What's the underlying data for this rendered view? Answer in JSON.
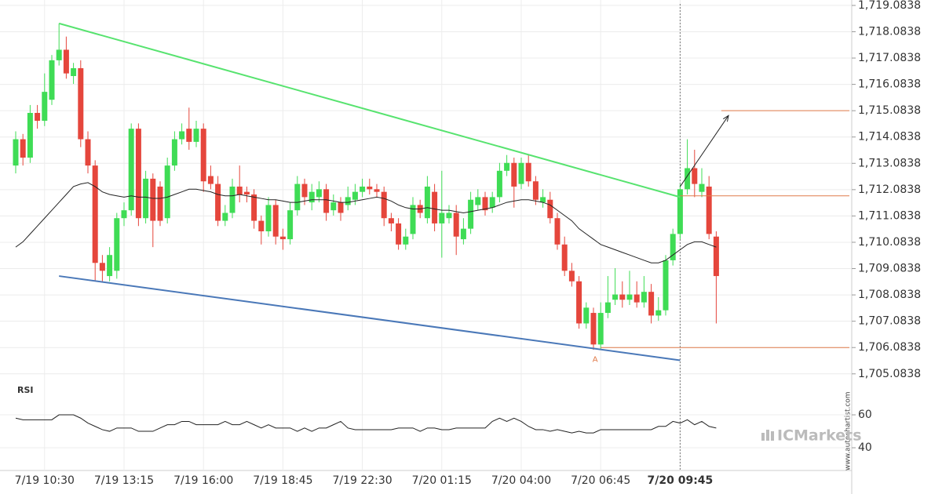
{
  "chart_data": {
    "type": "candlestick",
    "categories": [
      null,
      null,
      null,
      null,
      "7/19 10:30",
      null,
      null,
      null,
      null,
      null,
      null,
      null,
      null,
      null,
      null,
      "7/19 13:15",
      null,
      null,
      null,
      null,
      null,
      null,
      null,
      null,
      null,
      null,
      "7/19 16:00",
      null,
      null,
      null,
      null,
      null,
      null,
      null,
      null,
      null,
      null,
      "7/19 18:45",
      null,
      null,
      null,
      null,
      null,
      null,
      null,
      null,
      null,
      null,
      "7/19 22:30",
      null,
      null,
      null,
      null,
      null,
      null,
      null,
      null,
      null,
      null,
      "7/20 01:15",
      null,
      null,
      null,
      null,
      null,
      null,
      null,
      null,
      null,
      null,
      "7/20 04:00",
      null,
      null,
      null,
      null,
      null,
      null,
      null,
      null,
      null,
      null,
      "7/20 06:45",
      null,
      null,
      null,
      null,
      null,
      null,
      null,
      null,
      null,
      null,
      "7/20 09:45",
      null,
      null,
      null,
      null,
      null
    ],
    "ohlc": [
      [
        1713.0,
        1714.3,
        1712.7,
        1714.0
      ],
      [
        1714.0,
        1714.2,
        1713.0,
        1713.3
      ],
      [
        1713.3,
        1715.3,
        1713.1,
        1715.0
      ],
      [
        1715.0,
        1715.3,
        1714.4,
        1714.7
      ],
      [
        1714.7,
        1716.5,
        1714.5,
        1715.8
      ],
      [
        1715.5,
        1717.2,
        1715.3,
        1717.0
      ],
      [
        1717.0,
        1718.4,
        1716.8,
        1717.4
      ],
      [
        1717.4,
        1717.9,
        1716.3,
        1716.5
      ],
      [
        1716.4,
        1716.9,
        1716.1,
        1716.7
      ],
      [
        1716.7,
        1717.0,
        1713.7,
        1714.0
      ],
      [
        1714.0,
        1714.3,
        1712.7,
        1713.0
      ],
      [
        1713.0,
        1713.2,
        1708.6,
        1709.3
      ],
      [
        1709.3,
        1709.6,
        1708.6,
        1709.0
      ],
      [
        1708.8,
        1709.9,
        1708.6,
        1709.6
      ],
      [
        1709.0,
        1711.2,
        1708.7,
        1711.0
      ],
      [
        1711.0,
        1711.6,
        1710.7,
        1711.3
      ],
      [
        1711.3,
        1714.6,
        1711.1,
        1714.4
      ],
      [
        1714.4,
        1714.6,
        1710.7,
        1711.0
      ],
      [
        1711.0,
        1712.8,
        1710.8,
        1712.5
      ],
      [
        1712.5,
        1712.7,
        1709.9,
        1710.9
      ],
      [
        1712.2,
        1712.4,
        1710.7,
        1710.9
      ],
      [
        1711.0,
        1713.3,
        1710.8,
        1713.0
      ],
      [
        1713.0,
        1714.3,
        1712.8,
        1714.0
      ],
      [
        1714.0,
        1714.6,
        1713.8,
        1714.3
      ],
      [
        1714.4,
        1715.2,
        1713.6,
        1713.9
      ],
      [
        1713.9,
        1714.7,
        1713.7,
        1714.4
      ],
      [
        1714.4,
        1714.6,
        1712.0,
        1712.4
      ],
      [
        1712.6,
        1713.0,
        1712.1,
        1712.3
      ],
      [
        1712.3,
        1712.6,
        1710.7,
        1710.9
      ],
      [
        1710.9,
        1711.5,
        1710.7,
        1711.2
      ],
      [
        1711.2,
        1712.5,
        1711.0,
        1712.2
      ],
      [
        1712.2,
        1713.0,
        1711.6,
        1711.9
      ],
      [
        1712.0,
        1712.2,
        1711.6,
        1711.9
      ],
      [
        1711.9,
        1712.1,
        1710.6,
        1710.9
      ],
      [
        1710.9,
        1711.1,
        1710.0,
        1710.5
      ],
      [
        1710.5,
        1711.8,
        1710.3,
        1711.5
      ],
      [
        1711.5,
        1711.7,
        1710.0,
        1710.3
      ],
      [
        1710.3,
        1710.6,
        1709.8,
        1710.2
      ],
      [
        1710.2,
        1711.6,
        1710.0,
        1711.3
      ],
      [
        1711.3,
        1712.6,
        1711.1,
        1712.3
      ],
      [
        1712.3,
        1712.5,
        1711.5,
        1711.8
      ],
      [
        1711.6,
        1712.3,
        1711.3,
        1712.0
      ],
      [
        1711.8,
        1712.4,
        1711.6,
        1712.1
      ],
      [
        1712.1,
        1712.3,
        1710.9,
        1711.2
      ],
      [
        1711.3,
        1711.9,
        1711.1,
        1711.6
      ],
      [
        1711.6,
        1711.8,
        1710.9,
        1711.2
      ],
      [
        1711.5,
        1712.2,
        1711.3,
        1711.8
      ],
      [
        1711.7,
        1712.3,
        1711.5,
        1712.0
      ],
      [
        1712.0,
        1712.5,
        1711.8,
        1712.2
      ],
      [
        1712.2,
        1712.5,
        1711.9,
        1712.1
      ],
      [
        1712.1,
        1712.3,
        1711.8,
        1712.0
      ],
      [
        1712.0,
        1712.2,
        1710.7,
        1711.0
      ],
      [
        1711.0,
        1711.2,
        1710.5,
        1710.8
      ],
      [
        1710.8,
        1711.0,
        1709.8,
        1710.0
      ],
      [
        1710.0,
        1710.6,
        1709.8,
        1710.3
      ],
      [
        1710.4,
        1711.8,
        1710.2,
        1711.5
      ],
      [
        1711.5,
        1711.7,
        1711.0,
        1711.2
      ],
      [
        1711.0,
        1712.6,
        1710.8,
        1712.2
      ],
      [
        1712.0,
        1712.3,
        1710.5,
        1710.8
      ],
      [
        1710.8,
        1712.8,
        1709.5,
        1711.2
      ],
      [
        1711.0,
        1711.5,
        1710.8,
        1711.2
      ],
      [
        1711.2,
        1711.5,
        1709.6,
        1710.3
      ],
      [
        1710.2,
        1711.0,
        1710.0,
        1710.6
      ],
      [
        1710.6,
        1712.0,
        1710.4,
        1711.7
      ],
      [
        1711.5,
        1712.1,
        1711.3,
        1711.8
      ],
      [
        1711.8,
        1712.0,
        1711.1,
        1711.3
      ],
      [
        1711.4,
        1712.0,
        1711.2,
        1711.8
      ],
      [
        1711.8,
        1713.1,
        1711.6,
        1712.8
      ],
      [
        1712.8,
        1713.4,
        1712.6,
        1713.1
      ],
      [
        1713.1,
        1713.3,
        1711.4,
        1712.2
      ],
      [
        1712.3,
        1713.3,
        1712.1,
        1713.1
      ],
      [
        1713.1,
        1713.4,
        1712.2,
        1712.4
      ],
      [
        1712.4,
        1712.6,
        1711.5,
        1711.7
      ],
      [
        1711.6,
        1712.1,
        1711.4,
        1711.8
      ],
      [
        1711.7,
        1712.0,
        1710.8,
        1711.0
      ],
      [
        1711.0,
        1711.2,
        1709.8,
        1710.0
      ],
      [
        1710.0,
        1710.3,
        1708.8,
        1709.0
      ],
      [
        1709.0,
        1709.3,
        1708.4,
        1708.6
      ],
      [
        1708.6,
        1708.8,
        1706.8,
        1707.0
      ],
      [
        1707.0,
        1707.8,
        1706.8,
        1707.6
      ],
      [
        1707.4,
        1707.6,
        1706.0,
        1706.2
      ],
      [
        1706.2,
        1707.8,
        1706.0,
        1707.4
      ],
      [
        1707.4,
        1708.8,
        1707.2,
        1707.8
      ],
      [
        1707.9,
        1709.1,
        1707.7,
        1708.1
      ],
      [
        1708.1,
        1708.6,
        1707.6,
        1707.9
      ],
      [
        1707.9,
        1709.0,
        1707.7,
        1708.1
      ],
      [
        1708.1,
        1708.6,
        1707.6,
        1707.8
      ],
      [
        1707.8,
        1708.8,
        1707.6,
        1708.2
      ],
      [
        1708.2,
        1708.5,
        1707.0,
        1707.3
      ],
      [
        1707.3,
        1708.0,
        1707.1,
        1707.5
      ],
      [
        1707.5,
        1709.6,
        1707.3,
        1709.4
      ],
      [
        1709.4,
        1710.6,
        1709.2,
        1710.4
      ],
      [
        1710.4,
        1712.3,
        1710.2,
        1712.1
      ],
      [
        1712.1,
        1714.0,
        1711.9,
        1712.9
      ],
      [
        1712.9,
        1713.6,
        1711.8,
        1712.3
      ],
      [
        1712.0,
        1712.9,
        1711.8,
        1712.3
      ],
      [
        1712.2,
        1712.6,
        1710.2,
        1710.4
      ],
      [
        1710.3,
        1710.5,
        1707.0,
        1708.8
      ]
    ],
    "up_color": "#3fdc55",
    "down_color": "#e5463c",
    "moving_average": {
      "color": "#222222",
      "values": [
        1709.9,
        1710.1,
        1710.4,
        1710.7,
        1711.0,
        1711.3,
        1711.6,
        1711.9,
        1712.2,
        1712.3,
        1712.35,
        1712.2,
        1712.0,
        1711.9,
        1711.85,
        1711.8,
        1711.85,
        1711.8,
        1711.8,
        1711.75,
        1711.75,
        1711.8,
        1711.9,
        1712.0,
        1712.1,
        1712.1,
        1712.05,
        1712.0,
        1711.9,
        1711.85,
        1711.85,
        1711.9,
        1711.85,
        1711.8,
        1711.75,
        1711.7,
        1711.7,
        1711.65,
        1711.6,
        1711.6,
        1711.65,
        1711.7,
        1711.7,
        1711.7,
        1711.65,
        1711.6,
        1711.6,
        1711.65,
        1711.7,
        1711.75,
        1711.8,
        1711.75,
        1711.65,
        1711.5,
        1711.4,
        1711.35,
        1711.35,
        1711.4,
        1711.35,
        1711.3,
        1711.3,
        1711.25,
        1711.2,
        1711.25,
        1711.3,
        1711.35,
        1711.4,
        1711.5,
        1711.6,
        1711.65,
        1711.7,
        1711.7,
        1711.65,
        1711.6,
        1711.5,
        1711.3,
        1711.1,
        1710.9,
        1710.6,
        1710.4,
        1710.2,
        1710.0,
        1709.9,
        1709.8,
        1709.7,
        1709.6,
        1709.5,
        1709.4,
        1709.3,
        1709.3,
        1709.4,
        1709.6,
        1709.8,
        1710.0,
        1710.1,
        1710.1,
        1710.0,
        1709.9
      ]
    },
    "ylim": [
      1704.69,
      1719.29
    ],
    "yticks": [
      {
        "value": 1705.0838,
        "label": "1,705.0838"
      },
      {
        "value": 1706.0838,
        "label": "1,706.0838"
      },
      {
        "value": 1707.0838,
        "label": "1,707.0838"
      },
      {
        "value": 1708.0838,
        "label": "1,708.0838"
      },
      {
        "value": 1709.0838,
        "label": "1,709.0838"
      },
      {
        "value": 1710.0838,
        "label": "1,710.0838"
      },
      {
        "value": 1711.0838,
        "label": "1,711.0838"
      },
      {
        "value": 1712.0838,
        "label": "1,712.0838"
      },
      {
        "value": 1713.0838,
        "label": "1,713.0838"
      },
      {
        "value": 1714.0838,
        "label": "1,714.0838"
      },
      {
        "value": 1715.0838,
        "label": "1,715.0838"
      },
      {
        "value": 1716.0838,
        "label": "1,716.0838"
      },
      {
        "value": 1717.0838,
        "label": "1,717.0838"
      },
      {
        "value": 1718.0838,
        "label": "1,718.0838"
      },
      {
        "value": 1719.0838,
        "label": "1,719.0838"
      }
    ],
    "current_index": 92,
    "upper_trend": {
      "color": "#57e36f",
      "points": [
        [
          6,
          1718.4
        ],
        [
          92,
          1711.8
        ]
      ]
    },
    "lower_trend": {
      "color": "#4a78b8",
      "points": [
        [
          6,
          1708.8
        ],
        [
          92,
          1705.6
        ]
      ]
    },
    "forecast_arrow": {
      "color": "#222222",
      "points": [
        [
          92,
          1712.2
        ],
        [
          98.7,
          1714.9
        ]
      ]
    },
    "levels": {
      "color": "#e07b4a",
      "lines": [
        {
          "value": 1715.0838,
          "from": 97.7
        },
        {
          "value": 1711.85,
          "from": 92
        },
        {
          "value": 1706.0838,
          "from": 81
        }
      ]
    },
    "point_label": {
      "text": "A",
      "index": 81,
      "value": 1705.8,
      "color": "#e07b4a"
    },
    "rsi": {
      "title": "RSI",
      "color": "#222222",
      "values": [
        58,
        57,
        57,
        57,
        57,
        57,
        60,
        60,
        60,
        58,
        55,
        53,
        51,
        50,
        52,
        52,
        52,
        50,
        50,
        50,
        52,
        54,
        54,
        56,
        56,
        54,
        54,
        54,
        54,
        56,
        54,
        54,
        56,
        54,
        52,
        54,
        52,
        52,
        52,
        50,
        52,
        50,
        52,
        52,
        54,
        56,
        52,
        51,
        51,
        51,
        51,
        51,
        51,
        52,
        52,
        52,
        50,
        52,
        52,
        51,
        51,
        52,
        52,
        52,
        52,
        52,
        56,
        58,
        56,
        58,
        56,
        53,
        51,
        51,
        50,
        51,
        50,
        49,
        50,
        49,
        49,
        51,
        51,
        51,
        51,
        51,
        51,
        51,
        51,
        53,
        53,
        56,
        55,
        57,
        54,
        56,
        53,
        52
      ],
      "y2lim": [
        26.2,
        78.6
      ],
      "y2ticks": [
        40,
        60
      ]
    },
    "watermark": {
      "brand": "ICMarkets",
      "site": "www.autochartist.com"
    }
  }
}
